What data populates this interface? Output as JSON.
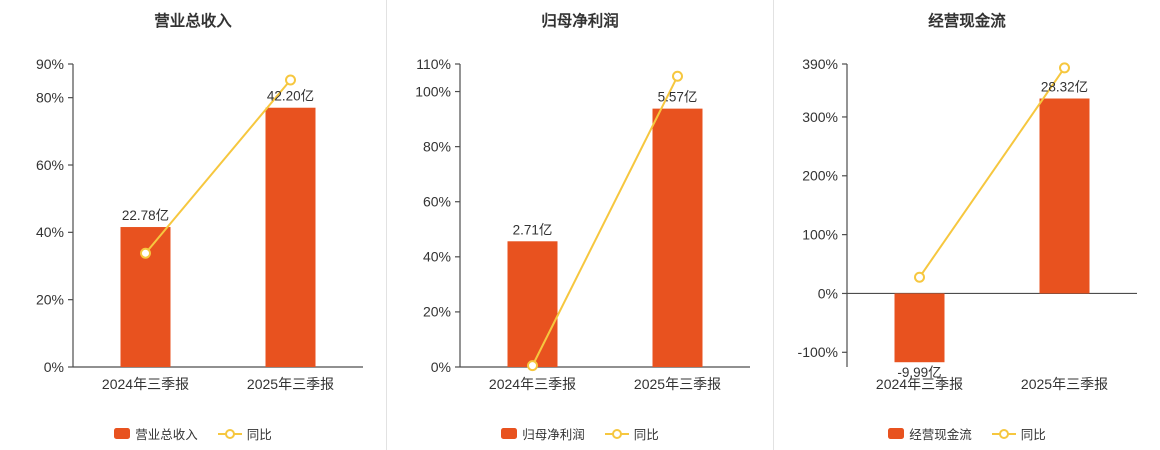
{
  "colors": {
    "bar": "#e8521f",
    "line": "#f6c73f",
    "marker_fill": "#ffffff",
    "axis": "#4d4d4d",
    "text": "#333333",
    "divider": "#e2e2e2",
    "background": "#ffffff"
  },
  "chart_data": [
    {
      "type": "bar",
      "title": "营业总收入",
      "categories": [
        "2024年三季报",
        "2025年三季报"
      ],
      "series": [
        {
          "name": "营业总收入",
          "type": "bar",
          "unit": "亿",
          "values": [
            22.78,
            42.2
          ],
          "labels": [
            "22.78亿",
            "42.20亿"
          ]
        },
        {
          "name": "同比",
          "type": "line",
          "unit": "%",
          "values": [
            33.8,
            85.25
          ]
        }
      ],
      "y_axis": {
        "min": 0,
        "max": 90,
        "ticks": [
          {
            "value": 0,
            "label": "0%"
          },
          {
            "value": 20,
            "label": "20%"
          },
          {
            "value": 40,
            "label": "40%"
          },
          {
            "value": 60,
            "label": "60%"
          },
          {
            "value": 80,
            "label": "80%"
          },
          {
            "value": 90,
            "label": "90%"
          }
        ]
      },
      "bar_scale_pct_per_unit": 1.825,
      "legend_position": "bottom",
      "grid": false
    },
    {
      "type": "bar",
      "title": "归母净利润",
      "categories": [
        "2024年三季报",
        "2025年三季报"
      ],
      "series": [
        {
          "name": "归母净利润",
          "type": "bar",
          "unit": "亿",
          "values": [
            2.71,
            5.57
          ],
          "labels": [
            "2.71亿",
            "5.57亿"
          ]
        },
        {
          "name": "同比",
          "type": "line",
          "unit": "%",
          "values": [
            0.5,
            105.54
          ]
        }
      ],
      "y_axis": {
        "min": 0,
        "max": 110,
        "ticks": [
          {
            "value": 0,
            "label": "0%"
          },
          {
            "value": 20,
            "label": "20%"
          },
          {
            "value": 40,
            "label": "40%"
          },
          {
            "value": 60,
            "label": "60%"
          },
          {
            "value": 80,
            "label": "80%"
          },
          {
            "value": 100,
            "label": "100%"
          },
          {
            "value": 110,
            "label": "110%"
          }
        ]
      },
      "bar_scale_pct_per_unit": 16.84,
      "legend_position": "bottom",
      "grid": false
    },
    {
      "type": "bar",
      "title": "经营现金流",
      "categories": [
        "2024年三季报",
        "2025年三季报"
      ],
      "series": [
        {
          "name": "经营现金流",
          "type": "bar",
          "unit": "亿",
          "values": [
            -9.99,
            28.32
          ],
          "labels": [
            "-9.99亿",
            "28.32亿"
          ]
        },
        {
          "name": "同比",
          "type": "line",
          "unit": "%",
          "values": [
            27.5,
            383.46
          ]
        }
      ],
      "y_axis": {
        "min": -125,
        "max": 390,
        "ticks": [
          {
            "value": -100,
            "label": "-100%"
          },
          {
            "value": 0,
            "label": "0%"
          },
          {
            "value": 100,
            "label": "100%"
          },
          {
            "value": 200,
            "label": "200%"
          },
          {
            "value": 300,
            "label": "300%"
          },
          {
            "value": 390,
            "label": "390%"
          }
        ]
      },
      "bar_scale_pct_per_unit": 11.7,
      "legend_position": "bottom",
      "grid": false
    }
  ]
}
